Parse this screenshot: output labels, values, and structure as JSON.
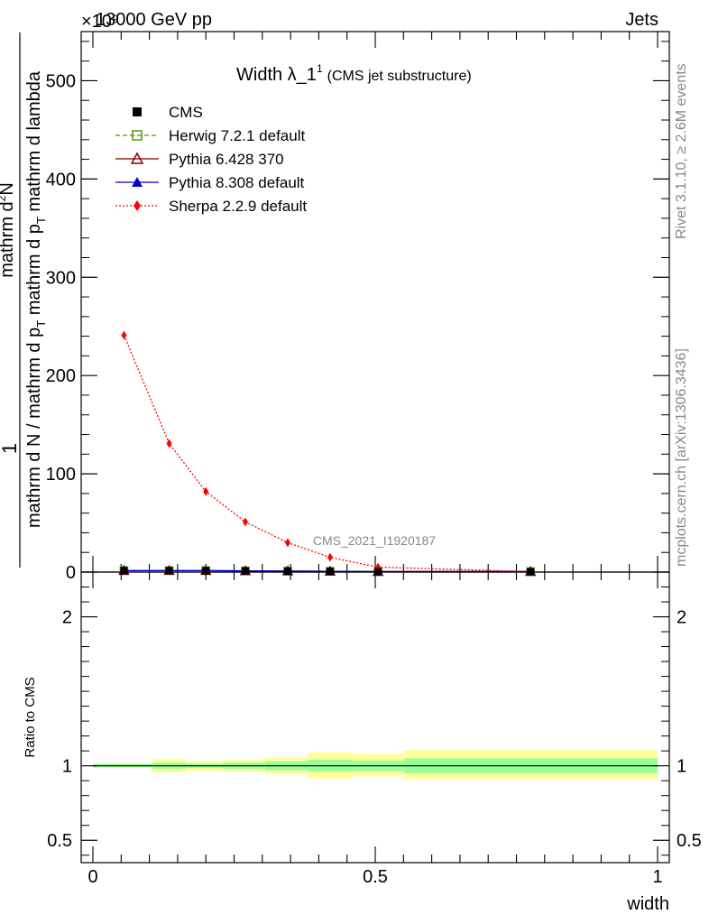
{
  "header": {
    "left": "13000 GeV pp",
    "right": "Jets",
    "exponent": "×10⁹",
    "side_label_top": "Rivet 3.1.10, ≥ 2.6M events",
    "side_label_bottom": "mcplots.cern.ch [arXiv:1306.3436]",
    "analysis_id": "CMS_2021_I1920187"
  },
  "plot_title": {
    "main": "Width λ_1",
    "superscript": "1",
    "suffix": "(CMS jet substructure)"
  },
  "y_axis_label": {
    "numerator": "mathrm d²N",
    "denominator": "mathrm d N / mathrm d p_T mathrm d p_T mathrm d lambda",
    "numerator_main": "mathrm d",
    "numerator_sup": "2",
    "numerator_end": "N",
    "denominator_part1": "mathrm d N / mathrm d p",
    "denominator_sub1": "T",
    "denominator_part2": "mathrm d p",
    "denominator_sub2": "T",
    "denominator_part3": "mathrm d lambda",
    "prefix": "1"
  },
  "ratio_axis_label": "Ratio to CMS",
  "x_axis_label": "width",
  "legend": [
    {
      "label": "CMS",
      "color": "#000000",
      "marker": "square-filled",
      "line": "none"
    },
    {
      "label": "Herwig 7.2.1 default",
      "color": "#4c9a00",
      "marker": "square-open",
      "line": "dashed"
    },
    {
      "label": "Pythia 6.428 370",
      "color": "#8b0000",
      "marker": "triangle-open",
      "line": "solid"
    },
    {
      "label": "Pythia 8.308 default",
      "color": "#0000cc",
      "marker": "triangle-filled",
      "line": "solid"
    },
    {
      "label": "Sherpa 2.2.9 default",
      "color": "#ff0000",
      "marker": "diamond-filled",
      "line": "dotted"
    }
  ],
  "chart_data": [
    {
      "type": "line",
      "panel": "main",
      "title": "Width λ_1¹ (CMS jet substructure)",
      "xlabel": "",
      "ylabel": "1 / (mathrm d N / mathrm d p_T) · mathrm d²N / (mathrm d p_T mathrm d lambda)",
      "xlim": [
        0,
        1
      ],
      "ylim": [
        0,
        550
      ],
      "y_scale_factor": "×10⁹",
      "yticks": [
        0,
        100,
        200,
        300,
        400,
        500
      ],
      "ytick_labels": [
        "0",
        "100",
        "200",
        "300",
        "400",
        "500"
      ],
      "series": [
        {
          "name": "CMS",
          "x": [
            0.055,
            0.135,
            0.2,
            0.27,
            0.345,
            0.42,
            0.505,
            0.775
          ],
          "y": [
            1.5,
            1.5,
            1.5,
            1.2,
            1.0,
            0.8,
            0.5,
            0.5
          ]
        },
        {
          "name": "Herwig 7.2.1 default",
          "x": [
            0.055,
            0.135,
            0.2,
            0.27,
            0.345,
            0.42,
            0.505,
            0.775
          ],
          "y": [
            1.5,
            1.5,
            1.5,
            1.2,
            1.0,
            0.8,
            0.5,
            0.5
          ]
        },
        {
          "name": "Pythia 6.428 370",
          "x": [
            0.055,
            0.135,
            0.2,
            0.27,
            0.345,
            0.42,
            0.505,
            0.775
          ],
          "y": [
            1.5,
            1.5,
            1.5,
            1.2,
            1.0,
            0.8,
            0.5,
            0.5
          ]
        },
        {
          "name": "Pythia 8.308 default",
          "x": [
            0.055,
            0.135,
            0.2,
            0.27,
            0.345,
            0.42,
            0.505,
            0.775
          ],
          "y": [
            1.5,
            1.5,
            1.5,
            1.2,
            1.0,
            0.8,
            0.5,
            0.5
          ]
        },
        {
          "name": "Sherpa 2.2.9 default",
          "x": [
            0.055,
            0.135,
            0.2,
            0.27,
            0.345,
            0.42,
            0.505,
            0.775
          ],
          "y": [
            241,
            131,
            82,
            51,
            30,
            15,
            5,
            0.5
          ]
        }
      ]
    },
    {
      "type": "area",
      "panel": "ratio",
      "ylabel": "Ratio to CMS",
      "xlabel": "width",
      "xlim": [
        0,
        1
      ],
      "ylim": [
        0.35,
        2.3
      ],
      "yticks": [
        0.5,
        1,
        2
      ],
      "ytick_labels": [
        "0.5",
        "1",
        "2"
      ],
      "xticks": [
        0,
        0.5,
        1
      ],
      "xtick_labels": [
        "0",
        "0.5",
        "1"
      ],
      "reference": 1,
      "bins": [
        {
          "x0": 0.0,
          "x1": 0.105,
          "stat": [
            0.99,
            1.01
          ],
          "total": [
            0.985,
            1.015
          ]
        },
        {
          "x0": 0.105,
          "x1": 0.165,
          "stat": [
            0.98,
            1.02
          ],
          "total": [
            0.955,
            1.045
          ]
        },
        {
          "x0": 0.165,
          "x1": 0.23,
          "stat": [
            0.985,
            1.015
          ],
          "total": [
            0.965,
            1.03
          ]
        },
        {
          "x0": 0.23,
          "x1": 0.305,
          "stat": [
            0.98,
            1.02
          ],
          "total": [
            0.96,
            1.04
          ]
        },
        {
          "x0": 0.305,
          "x1": 0.38,
          "stat": [
            0.97,
            1.03
          ],
          "total": [
            0.945,
            1.055
          ]
        },
        {
          "x0": 0.38,
          "x1": 0.46,
          "stat": [
            0.96,
            1.04
          ],
          "total": [
            0.915,
            1.09
          ]
        },
        {
          "x0": 0.46,
          "x1": 0.55,
          "stat": [
            0.965,
            1.035
          ],
          "total": [
            0.93,
            1.08
          ]
        },
        {
          "x0": 0.55,
          "x1": 1.0,
          "stat": [
            0.95,
            1.05
          ],
          "total": [
            0.91,
            1.105
          ]
        }
      ]
    }
  ],
  "colors": {
    "stat_band": "#99ff99",
    "total_band": "#ffff99",
    "grey_text": "#888888"
  }
}
